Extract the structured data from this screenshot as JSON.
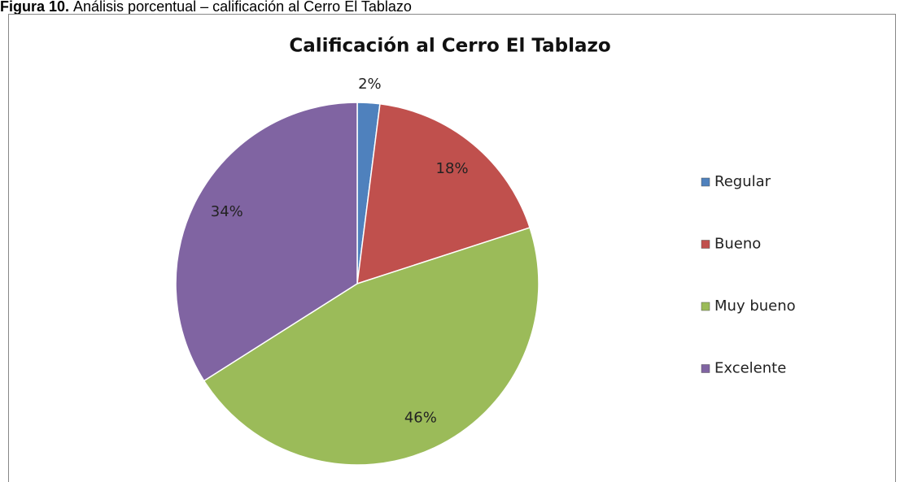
{
  "caption": {
    "label": "Figura 10.",
    "text": "Análisis porcentual – calificación al Cerro El Tablazo"
  },
  "chart_data": {
    "type": "pie",
    "title": "Calificación al Cerro El Tablazo",
    "categories": [
      "Regular",
      "Bueno",
      "Muy bueno",
      "Excelente"
    ],
    "values": [
      2,
      18,
      46,
      34
    ],
    "value_labels": [
      "2%",
      "18%",
      "46%",
      "34%"
    ],
    "colors": [
      "#4f81bd",
      "#c0504d",
      "#9bbb59",
      "#8064a2"
    ],
    "legend": "right"
  }
}
